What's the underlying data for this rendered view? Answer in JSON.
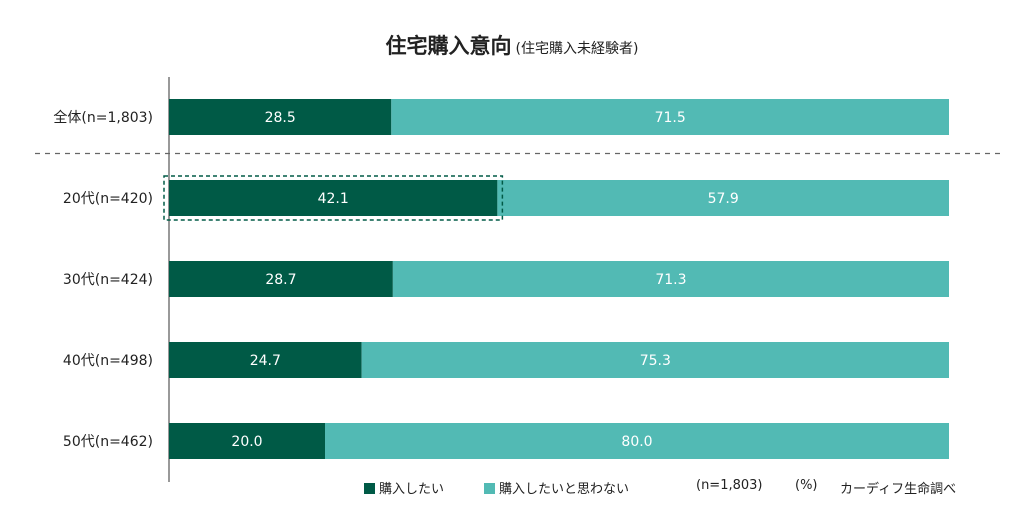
{
  "chart_data": {
    "type": "bar",
    "stacked": true,
    "orientation": "horizontal",
    "title": "住宅購入意向",
    "subtitle": "(住宅購入未経験者)",
    "categories": [
      "全体(n=1,803)",
      "20代(n=420)",
      "30代(n=424)",
      "40代(n=498)",
      "50代(n=462)"
    ],
    "series": [
      {
        "name": "購入したい",
        "color": "#005a46",
        "values": [
          28.5,
          42.1,
          28.7,
          24.7,
          20.0
        ],
        "labels": [
          "28.5",
          "42.1",
          "28.7",
          "24.7",
          "20.0"
        ]
      },
      {
        "name": "購入したいと思わない",
        "color": "#52bab4",
        "values": [
          71.5,
          57.9,
          71.3,
          75.3,
          80.0
        ],
        "labels": [
          "71.5",
          "57.9",
          "71.3",
          "75.3",
          "80.0"
        ]
      }
    ],
    "xlim": [
      0,
      100
    ],
    "highlight_category": "20代(n=420)",
    "divider_after_category": "全体(n=1,803)",
    "grid": false,
    "legend_position": "bottom"
  },
  "legend": {
    "item1": "購入したい",
    "item2": "購入したいと思わない",
    "sample_note": "(n=1,803)",
    "unit_note": "(%)",
    "source": "カーディフ生命調べ"
  }
}
